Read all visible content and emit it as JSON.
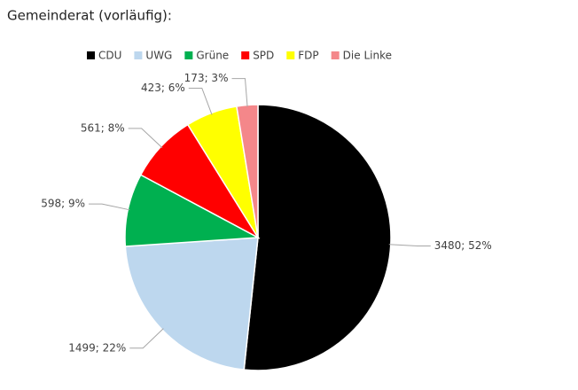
{
  "chart_data": {
    "type": "pie",
    "title": "Gemeinderat (vorläufig):",
    "categories": [
      "CDU",
      "UWG",
      "Grüne",
      "SPD",
      "FDP",
      "Die Linke"
    ],
    "values": [
      3480,
      1499,
      598,
      561,
      423,
      173
    ],
    "value_labels": [
      "3480; 52%",
      "1499; 22%",
      "598; 9%",
      "561; 8%",
      "423; 6%",
      "173; 3%"
    ],
    "colors": [
      "#000000",
      "#bdd7ee",
      "#00b050",
      "#ff0000",
      "#ffff00",
      "#f4878a"
    ],
    "legend": "top"
  }
}
